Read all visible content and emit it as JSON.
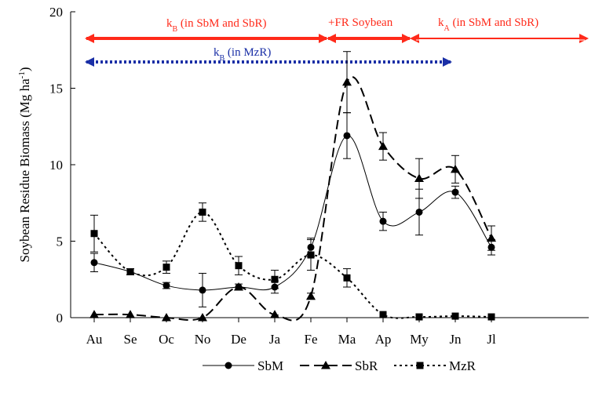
{
  "chart_data": {
    "type": "line",
    "xlabel": "",
    "ylabel": "Soybean Residue Biomass (Mg ha",
    "ylabel_sup": "-1",
    "ylabel_close": ")",
    "ylim": [
      0,
      20
    ],
    "yticks": [
      "0",
      "5",
      "10",
      "15",
      "20"
    ],
    "categories": [
      "Au",
      "Se",
      "Oc",
      "No",
      "De",
      "Ja",
      "Fe",
      "Ma",
      "Ap",
      "My",
      "Jn",
      "Jl"
    ],
    "grid": false,
    "legend_position": "bottom",
    "series": [
      {
        "name": "SbM",
        "marker": "circle",
        "dash": "solid",
        "values": [
          3.6,
          3.0,
          2.1,
          1.8,
          2.0,
          2.0,
          4.6,
          11.9,
          6.3,
          6.9,
          8.2,
          4.6
        ],
        "errors": [
          0.6,
          0.2,
          0.2,
          1.1,
          0.2,
          0.4,
          0.6,
          1.5,
          0.6,
          1.5,
          0.4,
          0.5
        ]
      },
      {
        "name": "SbR",
        "marker": "triangle",
        "dash": "long-dash",
        "values": [
          0.2,
          0.2,
          0.0,
          0.0,
          2.0,
          0.2,
          1.4,
          15.4,
          11.2,
          9.1,
          9.7,
          5.2
        ],
        "errors": [
          0.0,
          0.0,
          0.0,
          0.0,
          0.0,
          0.0,
          0.2,
          2.0,
          0.9,
          1.3,
          0.9,
          0.8
        ]
      },
      {
        "name": "MzR",
        "marker": "square",
        "dash": "dotted",
        "values": [
          5.5,
          3.0,
          3.3,
          6.9,
          3.4,
          2.5,
          4.1,
          2.6,
          0.2,
          0.05,
          0.1,
          0.05
        ],
        "errors": [
          1.2,
          0.2,
          0.4,
          0.6,
          0.6,
          0.6,
          1.0,
          0.6,
          0.0,
          0.0,
          0.0,
          0.0
        ]
      }
    ],
    "annotations": {
      "arrow1": {
        "sub": "B",
        "text": " (in SbM and SbR)",
        "color": "#ff2a1a",
        "from": 0,
        "to": 6.4
      },
      "arrow2": {
        "label": "+FR Soybean",
        "color": "#ff2a1a",
        "from": 6.4,
        "to": 7
      },
      "arrow3": {
        "sub": "A",
        "text": " (in SbM and SbR)",
        "color": "#ff2a1a",
        "from": 7,
        "to": 11
      },
      "arrow4": {
        "sub": "B",
        "text": " (in MzR)",
        "color": "#1a2fa6",
        "from": 0,
        "to": 8
      }
    },
    "annotation_k": "k"
  }
}
